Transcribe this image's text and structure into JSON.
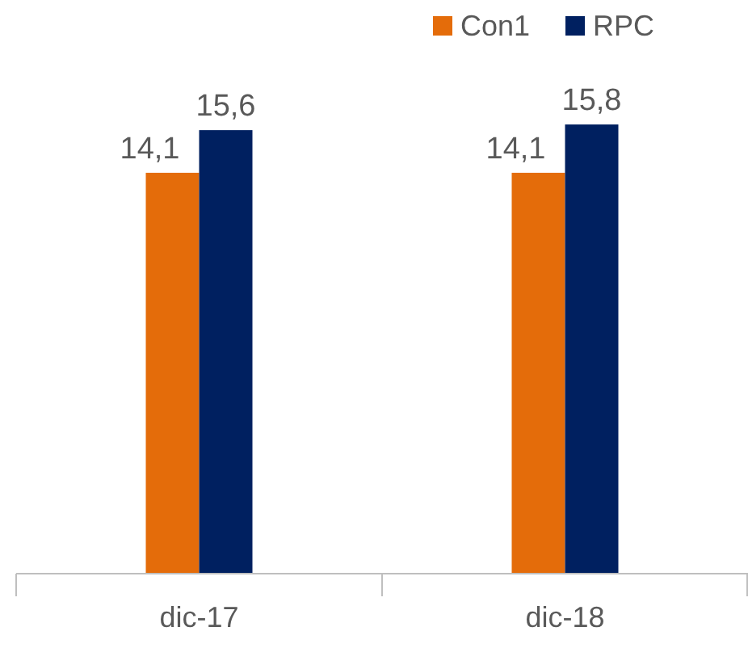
{
  "chart_data": {
    "type": "bar",
    "categories": [
      "dic-17",
      "dic-18"
    ],
    "series": [
      {
        "name": "Con1",
        "color": "#e46c0a",
        "values": [
          14.1,
          14.1
        ],
        "value_labels": [
          "14,1",
          "14,1"
        ]
      },
      {
        "name": "RPC",
        "color": "#002060",
        "values": [
          15.6,
          15.8
        ],
        "value_labels": [
          "15,6",
          "15,8"
        ]
      }
    ],
    "tick_labels": "x",
    "legend": "top right"
  }
}
